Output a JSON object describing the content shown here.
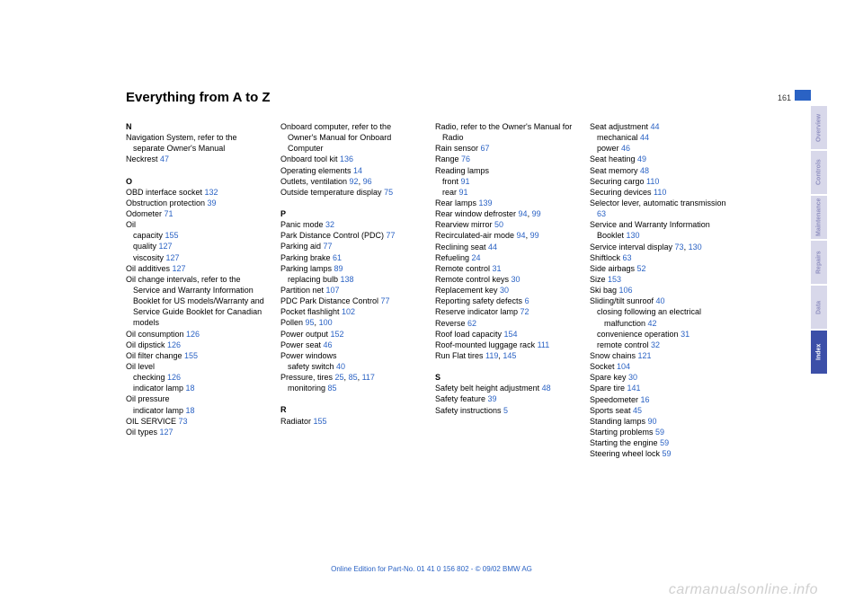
{
  "title": "Everything from A to Z",
  "pageNumber": "161",
  "footer": "Online Edition for Part-No. 01 41 0 156 802 - © 09/02 BMW AG",
  "watermark": "carmanualsonline.info",
  "tabs": [
    {
      "label": "Overview",
      "active": false
    },
    {
      "label": "Controls",
      "active": false
    },
    {
      "label": "Maintenance",
      "active": false
    },
    {
      "label": "Repairs",
      "active": false
    },
    {
      "label": "Data",
      "active": false
    },
    {
      "label": "Index",
      "active": true
    }
  ],
  "columns": [
    [
      {
        "type": "head",
        "text": "N"
      },
      {
        "type": "entry",
        "text": "Navigation System, refer to the separate Owner's Manual"
      },
      {
        "type": "entry",
        "text": "Neckrest ",
        "page": "47"
      },
      {
        "type": "spacer"
      },
      {
        "type": "head",
        "text": "O"
      },
      {
        "type": "entry",
        "text": "OBD interface socket ",
        "page": "132"
      },
      {
        "type": "entry",
        "text": "Obstruction protection ",
        "page": "39"
      },
      {
        "type": "entry",
        "text": "Odometer ",
        "page": "71"
      },
      {
        "type": "entry",
        "text": "Oil"
      },
      {
        "type": "sub",
        "text": "capacity ",
        "page": "155"
      },
      {
        "type": "sub",
        "text": "quality ",
        "page": "127"
      },
      {
        "type": "sub",
        "text": "viscosity ",
        "page": "127"
      },
      {
        "type": "entry",
        "text": "Oil additives ",
        "page": "127"
      },
      {
        "type": "entry",
        "text": "Oil change intervals, refer to the Service and Warranty Information Booklet for US models/Warranty and Service Guide Booklet for Canadian models"
      },
      {
        "type": "entry",
        "text": "Oil consumption ",
        "page": "126"
      },
      {
        "type": "entry",
        "text": "Oil dipstick ",
        "page": "126"
      },
      {
        "type": "entry",
        "text": "Oil filter change ",
        "page": "155"
      },
      {
        "type": "entry",
        "text": "Oil level"
      },
      {
        "type": "sub",
        "text": "checking ",
        "page": "126"
      },
      {
        "type": "sub",
        "text": "indicator lamp ",
        "page": "18"
      },
      {
        "type": "entry",
        "text": "Oil pressure"
      },
      {
        "type": "sub",
        "text": "indicator lamp ",
        "page": "18"
      },
      {
        "type": "entry",
        "text": "OIL SERVICE ",
        "page": "73"
      },
      {
        "type": "entry",
        "text": "Oil types ",
        "page": "127"
      }
    ],
    [
      {
        "type": "entry",
        "text": "Onboard computer, refer to the Owner's Manual for Onboard Computer"
      },
      {
        "type": "entry",
        "text": "Onboard tool kit ",
        "page": "136"
      },
      {
        "type": "entry",
        "text": "Operating elements ",
        "page": "14"
      },
      {
        "type": "entry",
        "text": "Outlets, ventilation ",
        "page": "92, 96"
      },
      {
        "type": "entry",
        "text": "Outside temperature display ",
        "page": "75"
      },
      {
        "type": "spacer"
      },
      {
        "type": "head",
        "text": "P"
      },
      {
        "type": "entry",
        "text": "Panic mode ",
        "page": "32"
      },
      {
        "type": "entry",
        "text": "Park Distance Control (PDC) ",
        "page": "77"
      },
      {
        "type": "entry",
        "text": "Parking aid ",
        "page": "77"
      },
      {
        "type": "entry",
        "text": "Parking brake ",
        "page": "61"
      },
      {
        "type": "entry",
        "text": "Parking lamps ",
        "page": "89"
      },
      {
        "type": "sub",
        "text": "replacing bulb ",
        "page": "138"
      },
      {
        "type": "entry",
        "text": "Partition net ",
        "page": "107"
      },
      {
        "type": "entry",
        "text": "PDC Park Distance Control ",
        "page": "77"
      },
      {
        "type": "entry",
        "text": "Pocket flashlight ",
        "page": "102"
      },
      {
        "type": "entry",
        "text": "Pollen ",
        "page": "95, 100"
      },
      {
        "type": "entry",
        "text": "Power output ",
        "page": "152"
      },
      {
        "type": "entry",
        "text": "Power seat ",
        "page": "46"
      },
      {
        "type": "entry",
        "text": "Power windows"
      },
      {
        "type": "sub",
        "text": "safety switch ",
        "page": "40"
      },
      {
        "type": "entry",
        "text": "Pressure, tires ",
        "page": "25, 85, 117"
      },
      {
        "type": "sub",
        "text": "monitoring ",
        "page": "85"
      },
      {
        "type": "spacer"
      },
      {
        "type": "head",
        "text": "R"
      },
      {
        "type": "entry",
        "text": "Radiator ",
        "page": "155"
      }
    ],
    [
      {
        "type": "entry",
        "text": "Radio, refer to the Owner's Manual for Radio"
      },
      {
        "type": "entry",
        "text": "Rain sensor ",
        "page": "67"
      },
      {
        "type": "entry",
        "text": "Range ",
        "page": "76"
      },
      {
        "type": "entry",
        "text": "Reading lamps"
      },
      {
        "type": "sub",
        "text": "front ",
        "page": "91"
      },
      {
        "type": "sub",
        "text": "rear ",
        "page": "91"
      },
      {
        "type": "entry",
        "text": "Rear lamps ",
        "page": "139"
      },
      {
        "type": "entry",
        "text": "Rear window defroster ",
        "page": "94, 99"
      },
      {
        "type": "entry",
        "text": "Rearview mirror ",
        "page": "50"
      },
      {
        "type": "entry",
        "text": "Recirculated-air mode ",
        "page": "94, 99"
      },
      {
        "type": "entry",
        "text": "Reclining seat ",
        "page": "44"
      },
      {
        "type": "entry",
        "text": "Refueling ",
        "page": "24"
      },
      {
        "type": "entry",
        "text": "Remote control ",
        "page": "31"
      },
      {
        "type": "entry",
        "text": "Remote control keys ",
        "page": "30"
      },
      {
        "type": "entry",
        "text": "Replacement key ",
        "page": "30"
      },
      {
        "type": "entry",
        "text": "Reporting safety defects ",
        "page": "6"
      },
      {
        "type": "entry",
        "text": "Reserve indicator lamp ",
        "page": "72"
      },
      {
        "type": "entry",
        "text": "Reverse ",
        "page": "62"
      },
      {
        "type": "entry",
        "text": "Roof load capacity ",
        "page": "154"
      },
      {
        "type": "entry",
        "text": "Roof-mounted luggage rack ",
        "page": "111"
      },
      {
        "type": "entry",
        "text": "Run Flat tires ",
        "page": "119, 145"
      },
      {
        "type": "spacer"
      },
      {
        "type": "head",
        "text": "S"
      },
      {
        "type": "entry",
        "text": "Safety belt height adjustment ",
        "page": "48"
      },
      {
        "type": "entry",
        "text": "Safety feature ",
        "page": "39"
      },
      {
        "type": "entry",
        "text": "Safety instructions ",
        "page": "5"
      }
    ],
    [
      {
        "type": "entry",
        "text": "Seat adjustment ",
        "page": "44"
      },
      {
        "type": "sub",
        "text": "mechanical ",
        "page": "44"
      },
      {
        "type": "sub",
        "text": "power ",
        "page": "46"
      },
      {
        "type": "entry",
        "text": "Seat heating ",
        "page": "49"
      },
      {
        "type": "entry",
        "text": "Seat memory ",
        "page": "48"
      },
      {
        "type": "entry",
        "text": "Securing cargo ",
        "page": "110"
      },
      {
        "type": "entry",
        "text": "Securing devices ",
        "page": "110"
      },
      {
        "type": "entry",
        "text": "Selector lever, automatic transmission ",
        "page": "63"
      },
      {
        "type": "entry",
        "text": "Service and Warranty Information Booklet ",
        "page": "130"
      },
      {
        "type": "entry",
        "text": "Service interval display ",
        "page": "73, 130"
      },
      {
        "type": "entry",
        "text": "Shiftlock ",
        "page": "63"
      },
      {
        "type": "entry",
        "text": "Side airbags ",
        "page": "52"
      },
      {
        "type": "entry",
        "text": "Size ",
        "page": "153"
      },
      {
        "type": "entry",
        "text": "Ski bag ",
        "page": "106"
      },
      {
        "type": "entry",
        "text": "Sliding/tilt sunroof ",
        "page": "40"
      },
      {
        "type": "sub",
        "text": "closing following an electrical malfunction ",
        "page": "42"
      },
      {
        "type": "sub",
        "text": "convenience operation ",
        "page": "31"
      },
      {
        "type": "sub",
        "text": "remote control ",
        "page": "32"
      },
      {
        "type": "entry",
        "text": "Snow chains ",
        "page": "121"
      },
      {
        "type": "entry",
        "text": "Socket ",
        "page": "104"
      },
      {
        "type": "entry",
        "text": "Spare key ",
        "page": "30"
      },
      {
        "type": "entry",
        "text": "Spare tire ",
        "page": "141"
      },
      {
        "type": "entry",
        "text": "Speedometer ",
        "page": "16"
      },
      {
        "type": "entry",
        "text": "Sports seat ",
        "page": "45"
      },
      {
        "type": "entry",
        "text": "Standing lamps ",
        "page": "90"
      },
      {
        "type": "entry",
        "text": "Starting problems ",
        "page": "59"
      },
      {
        "type": "entry",
        "text": "Starting the engine ",
        "page": "59"
      },
      {
        "type": "entry",
        "text": "Steering wheel lock ",
        "page": "59"
      }
    ]
  ]
}
